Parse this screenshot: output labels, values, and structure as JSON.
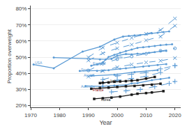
{
  "chart_data": {
    "type": "line",
    "xlabel": "Year",
    "ylabel": "Proportion overweight",
    "xlim": [
      1970,
      2022
    ],
    "ylim": [
      0.19,
      0.82
    ],
    "xticks": [
      1970,
      1980,
      1990,
      2000,
      2010,
      2020
    ],
    "yticks": [
      {
        "value": 0.2,
        "label": "20%"
      },
      {
        "value": 0.3,
        "label": "30%"
      },
      {
        "value": 0.4,
        "label": "40%"
      },
      {
        "value": 0.5,
        "label": "50%"
      },
      {
        "value": 0.6,
        "label": "60%"
      },
      {
        "value": 0.7,
        "label": "70%"
      },
      {
        "value": 0.8,
        "label": "80%"
      }
    ],
    "grid": true,
    "series": [
      {
        "x": [
          1971,
          1978,
          1988,
          1994,
          1999,
          2002,
          2004,
          2006,
          2008,
          2010,
          2012,
          2014,
          2016,
          2018
        ],
        "values": [
          0.455,
          0.432,
          0.535,
          0.565,
          0.61,
          0.628,
          0.632,
          0.635,
          0.638,
          0.642,
          0.648,
          0.652,
          0.656,
          0.66
        ],
        "color": "#5b9bd5",
        "line_style": "solid",
        "marker": "circle",
        "label": {
          "text": "USA",
          "x": 1971,
          "y": 0.468,
          "color": "#5b9bd5"
        }
      },
      {
        "x": [
          1991,
          1993,
          1995,
          1997,
          1999,
          2001,
          2003,
          2005,
          2007,
          2009,
          2011,
          2013,
          2015,
          2017,
          2019
        ],
        "values": [
          0.448,
          0.455,
          0.468,
          0.502,
          0.515,
          0.528,
          0.538,
          0.548,
          0.558,
          0.562,
          0.565,
          0.57,
          0.575,
          0.578,
          0.58
        ],
        "color": "#5b9bd5",
        "line_style": "solid",
        "marker": "circle",
        "label": {
          "text": "England",
          "x": 1991,
          "y": 0.462,
          "color": "#5b9bd5"
        }
      },
      {
        "x": [
          1978,
          1994,
          1996,
          1998,
          2000,
          2003,
          2005,
          2007,
          2009,
          2011,
          2013,
          2015,
          2017
        ],
        "values": [
          0.498,
          0.487,
          0.487,
          0.49,
          0.51,
          0.52,
          0.518,
          0.522,
          0.522,
          0.528,
          0.532,
          0.537,
          0.54
        ],
        "color": "#5b9bd5",
        "line_style": "solid",
        "marker": "circle",
        "label": {
          "text": "Canada",
          "x": 1997,
          "y": 0.5,
          "color": "#5b9bd5"
        }
      },
      {
        "x": [
          1987,
          1993,
          1995,
          1997,
          2001,
          2003,
          2006,
          2009,
          2011,
          2014,
          2017
        ],
        "values": [
          0.415,
          0.415,
          0.418,
          0.42,
          0.428,
          0.432,
          0.438,
          0.442,
          0.446,
          0.452,
          0.458
        ],
        "color": "#5b9bd5",
        "line_style": "solid",
        "marker": "circle",
        "label": {
          "text": "Spain",
          "x": 1987,
          "y": 0.422,
          "color": "#5b9bd5"
        }
      },
      {
        "x": [
          1991,
          1999,
          2006,
          2014
        ],
        "values": [
          0.385,
          0.392,
          0.408,
          0.42
        ],
        "color": "#5b9bd5",
        "line_style": "solid",
        "marker": "circle",
        "label": {
          "text": "Austria",
          "x": 1988,
          "y": 0.388,
          "color": "#5b9bd5"
        }
      },
      {
        "x": [
          1989,
          1995,
          1999,
          2003,
          2005,
          2007,
          2012,
          2015,
          2018
        ],
        "values": [
          0.322,
          0.32,
          0.325,
          0.328,
          0.338,
          0.34,
          0.358,
          0.365,
          0.373
        ],
        "color": "#5b9bd5",
        "line_style": "solid",
        "marker": "circle",
        "label": {
          "text": "Australia",
          "x": 1987,
          "y": 0.318,
          "color": "#5b9bd5"
        }
      },
      {
        "x": [
          1990,
          1995,
          2000,
          2005,
          2010,
          2015,
          2020
        ],
        "values": [
          0.5,
          0.56,
          0.59,
          0.62,
          0.645,
          0.668,
          0.74
        ],
        "color": "#5b9bd5",
        "line_style": "dashed",
        "marker": "x"
      },
      {
        "x": [
          1990,
          1995,
          2000,
          2005,
          2010,
          2015,
          2020
        ],
        "values": [
          0.48,
          0.525,
          0.555,
          0.578,
          0.605,
          0.628,
          0.695
        ],
        "color": "#5b9bd5",
        "line_style": "dashed",
        "marker": "x"
      },
      {
        "x": [
          1990,
          1995,
          2000,
          2005,
          2010,
          2015,
          2020
        ],
        "values": [
          0.418,
          0.46,
          0.488,
          0.505,
          0.522,
          0.54,
          0.555
        ],
        "color": "#5b9bd5",
        "line_style": "dashed",
        "marker": "circle-open"
      },
      {
        "x": [
          1990,
          1995,
          2000,
          2005,
          2010,
          2015,
          2020
        ],
        "values": [
          0.38,
          0.415,
          0.438,
          0.455,
          0.468,
          0.478,
          0.495
        ],
        "color": "#5b9bd5",
        "line_style": "dashed",
        "marker": "x"
      },
      {
        "x": [
          1995,
          2000,
          2005,
          2010,
          2015,
          2020
        ],
        "values": [
          0.362,
          0.385,
          0.395,
          0.405,
          0.428,
          0.448
        ],
        "color": "#5b9bd5",
        "line_style": "dashed",
        "marker": "plus"
      },
      {
        "x": [
          1995,
          2000,
          2005,
          2010,
          2015,
          2020
        ],
        "values": [
          0.34,
          0.358,
          0.368,
          0.382,
          0.405,
          0.448
        ],
        "color": "#5b9bd5",
        "line_style": "dashed",
        "marker": "plus"
      },
      {
        "x": [
          1998,
          2003,
          2008,
          2013,
          2018,
          2020
        ],
        "values": [
          0.285,
          0.292,
          0.3,
          0.318,
          0.338,
          0.35
        ],
        "color": "#5b9bd5",
        "line_style": "dashed",
        "marker": "plus"
      },
      {
        "x": [
          1994,
          1995,
          1997,
          1999,
          2001,
          2003,
          2005,
          2007,
          2010,
          2013
        ],
        "values": [
          0.34,
          0.342,
          0.344,
          0.348,
          0.35,
          0.352,
          0.355,
          0.358,
          0.368,
          0.378
        ],
        "color": "#1a1a1a",
        "line_style": "solid",
        "marker": "square",
        "label": {
          "text": "Italy",
          "x": 1997,
          "y": 0.352,
          "color": "#1a1a1a"
        }
      },
      {
        "x": [
          1991,
          1994,
          1997,
          2000,
          2003,
          2006,
          2009,
          2012,
          2015
        ],
        "values": [
          0.305,
          0.31,
          0.312,
          0.316,
          0.32,
          0.322,
          0.326,
          0.33,
          0.336
        ],
        "color": "#1a1a1a",
        "line_style": "solid",
        "marker": "square",
        "label": {
          "text": "France",
          "x": 1991,
          "y": 0.298,
          "color": "#8b0000"
        }
      },
      {
        "x": [
          1992,
          1995,
          1998,
          2001,
          2005,
          2007,
          2010,
          2012,
          2016
        ],
        "values": [
          0.242,
          0.246,
          0.25,
          0.256,
          0.268,
          0.274,
          0.278,
          0.282,
          0.29
        ],
        "color": "#1a1a1a",
        "line_style": "solid",
        "marker": "square",
        "label": {
          "text": "Korea",
          "x": 1994,
          "y": 0.237,
          "color": "#1a1a1a"
        }
      }
    ]
  }
}
